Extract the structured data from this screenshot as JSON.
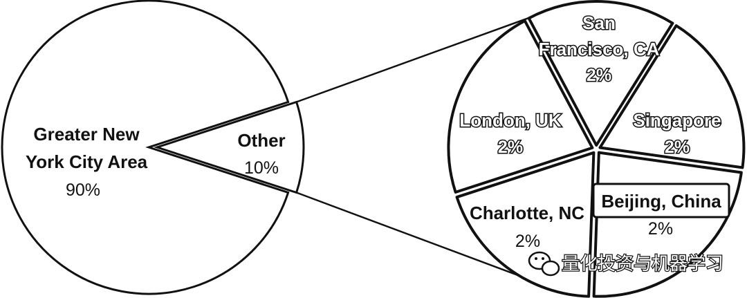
{
  "chart_data": [
    {
      "type": "pie",
      "slices": [
        {
          "label": "Greater New York City Area",
          "value": 90,
          "value_label": "90%"
        },
        {
          "label": "Other",
          "value": 10,
          "value_label": "10%"
        }
      ]
    },
    {
      "type": "pie",
      "title": "",
      "slices": [
        {
          "label": "San Francisco, CA",
          "value": 2,
          "value_label": "2%"
        },
        {
          "label": "Singapore",
          "value": 2,
          "value_label": "2%"
        },
        {
          "label": "Beijing, China",
          "value": 2,
          "value_label": "2%"
        },
        {
          "label": "Charlotte, NC",
          "value": 2,
          "value_label": "2%"
        },
        {
          "label": "London, UK",
          "value": 2,
          "value_label": "2%"
        }
      ]
    }
  ],
  "watermark": {
    "text": "量化投资与机器学习",
    "icon": "wechat-icon"
  },
  "colors": {
    "stroke": "#111111",
    "fill": "#ffffff"
  }
}
